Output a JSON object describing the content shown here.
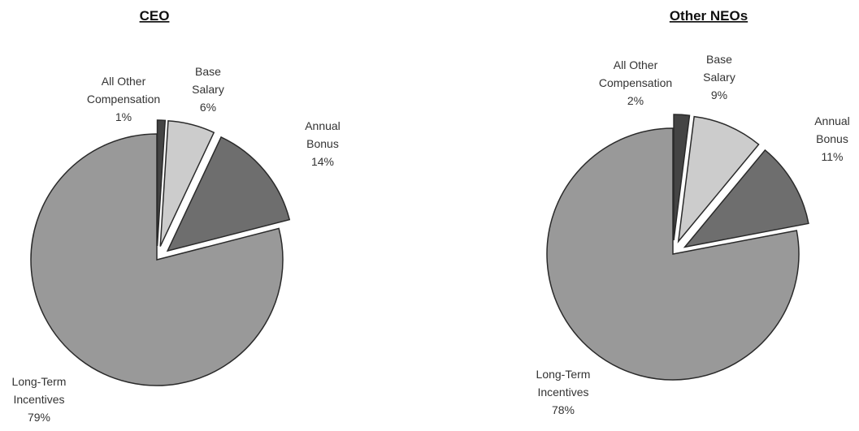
{
  "chart_data": [
    {
      "type": "pie",
      "title": "CEO",
      "slices": [
        {
          "label": [
            "Long-Term",
            "Incentives"
          ],
          "percent_text": "79%",
          "value": 79,
          "color": "#999999"
        },
        {
          "label": [
            "All Other",
            "Compensation"
          ],
          "percent_text": "1%",
          "value": 1,
          "color": "#444444"
        },
        {
          "label": [
            "Base",
            "Salary"
          ],
          "percent_text": "6%",
          "value": 6,
          "color": "#cccccc"
        },
        {
          "label": [
            "Annual",
            "Bonus"
          ],
          "percent_text": "14%",
          "value": 14,
          "color": "#6e6e6e"
        }
      ]
    },
    {
      "type": "pie",
      "title": "Other NEOs",
      "slices": [
        {
          "label": [
            "Long-Term",
            "Incentives"
          ],
          "percent_text": "78%",
          "value": 78,
          "color": "#999999"
        },
        {
          "label": [
            "All Other",
            "Compensation"
          ],
          "percent_text": "2%",
          "value": 2,
          "color": "#444444"
        },
        {
          "label": [
            "Base",
            "Salary"
          ],
          "percent_text": "9%",
          "value": 9,
          "color": "#cccccc"
        },
        {
          "label": [
            "Annual",
            "Bonus"
          ],
          "percent_text": "11%",
          "value": 11,
          "color": "#6e6e6e"
        }
      ]
    }
  ]
}
